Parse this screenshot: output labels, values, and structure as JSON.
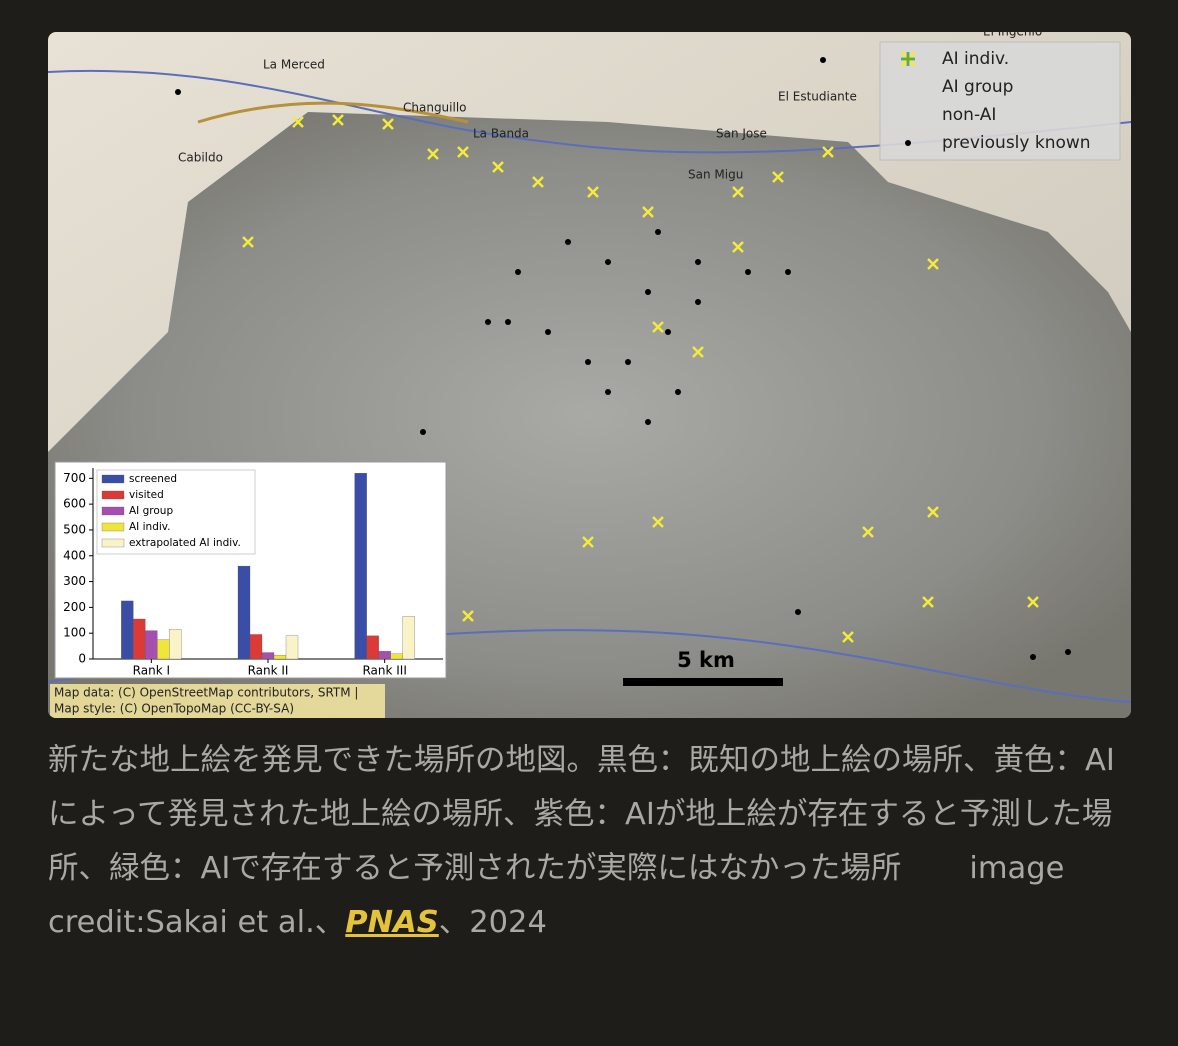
{
  "figure": {
    "map": {
      "place_names": [
        "La Merced",
        "Changuillo",
        "Cabildo",
        "La Banda",
        "San Jose",
        "San Migu",
        "El Estudiante",
        "El Ingenio"
      ],
      "legend": [
        "AI indiv.",
        "AI group",
        "non-AI",
        "previously known"
      ],
      "scale_label": "5 km",
      "attribution": [
        "Map data: (C) OpenStreetMap contributors, SRTM |",
        "Map style: (C) OpenTopoMap (CC-BY-SA)"
      ]
    },
    "chart_data": {
      "type": "bar",
      "categories": [
        "Rank I",
        "Rank II",
        "Rank III"
      ],
      "series": [
        {
          "name": "screened",
          "color": "#3a4ea8",
          "values": [
            225,
            360,
            720
          ]
        },
        {
          "name": "visited",
          "color": "#dc3a36",
          "values": [
            155,
            95,
            90
          ]
        },
        {
          "name": "AI group",
          "color": "#a64fae",
          "values": [
            110,
            25,
            30
          ]
        },
        {
          "name": "AI indiv.",
          "color": "#f0e63a",
          "values": [
            75,
            15,
            20
          ]
        },
        {
          "name": "extrapolated AI indiv.",
          "color": "#fbf3c8",
          "values": [
            115,
            90,
            165
          ]
        }
      ],
      "ylim": [
        0,
        740
      ],
      "yticks": [
        0,
        100,
        200,
        300,
        400,
        500,
        600,
        700
      ]
    }
  },
  "caption": {
    "text": "新たな地上絵を発見できた場所の地図。黒色：既知の地上絵の場所、黄色：AIによって発見された地上絵の場所、紫色：AIが地上絵が存在すると予測した場所、緑色：AIで存在すると予測されたが実際にはなかった場所",
    "credit": "image credit:Sakai et al.、",
    "link": "PNAS",
    "tail": "、2024"
  }
}
